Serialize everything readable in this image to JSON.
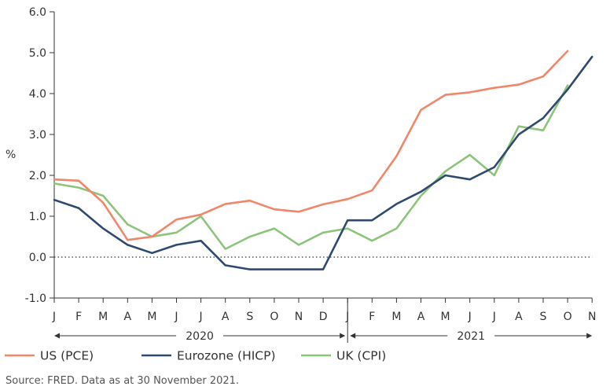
{
  "chart_data": {
    "type": "line",
    "ylabel": "%",
    "ylim": [
      -1.0,
      6.0
    ],
    "yticks": [
      "6.0",
      "5.0",
      "4.0",
      "3.0",
      "2.0",
      "1.0",
      "0.0",
      "-1.0"
    ],
    "x": [
      "J",
      "F",
      "M",
      "A",
      "M",
      "J",
      "J",
      "A",
      "S",
      "O",
      "N",
      "D",
      "J",
      "F",
      "M",
      "A",
      "M",
      "J",
      "J",
      "A",
      "S",
      "O",
      "N"
    ],
    "year_labels": [
      "2020",
      "2021"
    ],
    "zero_line": "dotted",
    "grid": false,
    "legend_position": "bottom",
    "series": [
      {
        "name": "US (PCE)",
        "color": "#f0866a",
        "values": [
          1.9,
          1.87,
          1.33,
          0.42,
          0.5,
          0.92,
          1.04,
          1.3,
          1.38,
          1.17,
          1.11,
          1.29,
          1.42,
          1.63,
          2.47,
          3.6,
          3.97,
          4.03,
          4.14,
          4.22,
          4.42,
          5.04,
          null
        ]
      },
      {
        "name": "Eurozone (HICP)",
        "color": "#2e4a6e",
        "values": [
          1.4,
          1.2,
          0.7,
          0.3,
          0.1,
          0.3,
          0.4,
          -0.2,
          -0.3,
          -0.3,
          -0.3,
          -0.3,
          0.9,
          0.9,
          1.3,
          1.6,
          2.0,
          1.9,
          2.2,
          3.0,
          3.4,
          4.1,
          4.9
        ]
      },
      {
        "name": "UK (CPI)",
        "color": "#8cc47c",
        "values": [
          1.8,
          1.7,
          1.5,
          0.8,
          0.5,
          0.6,
          1.0,
          0.2,
          0.5,
          0.7,
          0.3,
          0.6,
          0.7,
          0.4,
          0.7,
          1.5,
          2.1,
          2.5,
          2.0,
          3.2,
          3.1,
          4.2,
          null
        ]
      }
    ]
  },
  "source": "Source: FRED. Data as at 30 November 2021."
}
